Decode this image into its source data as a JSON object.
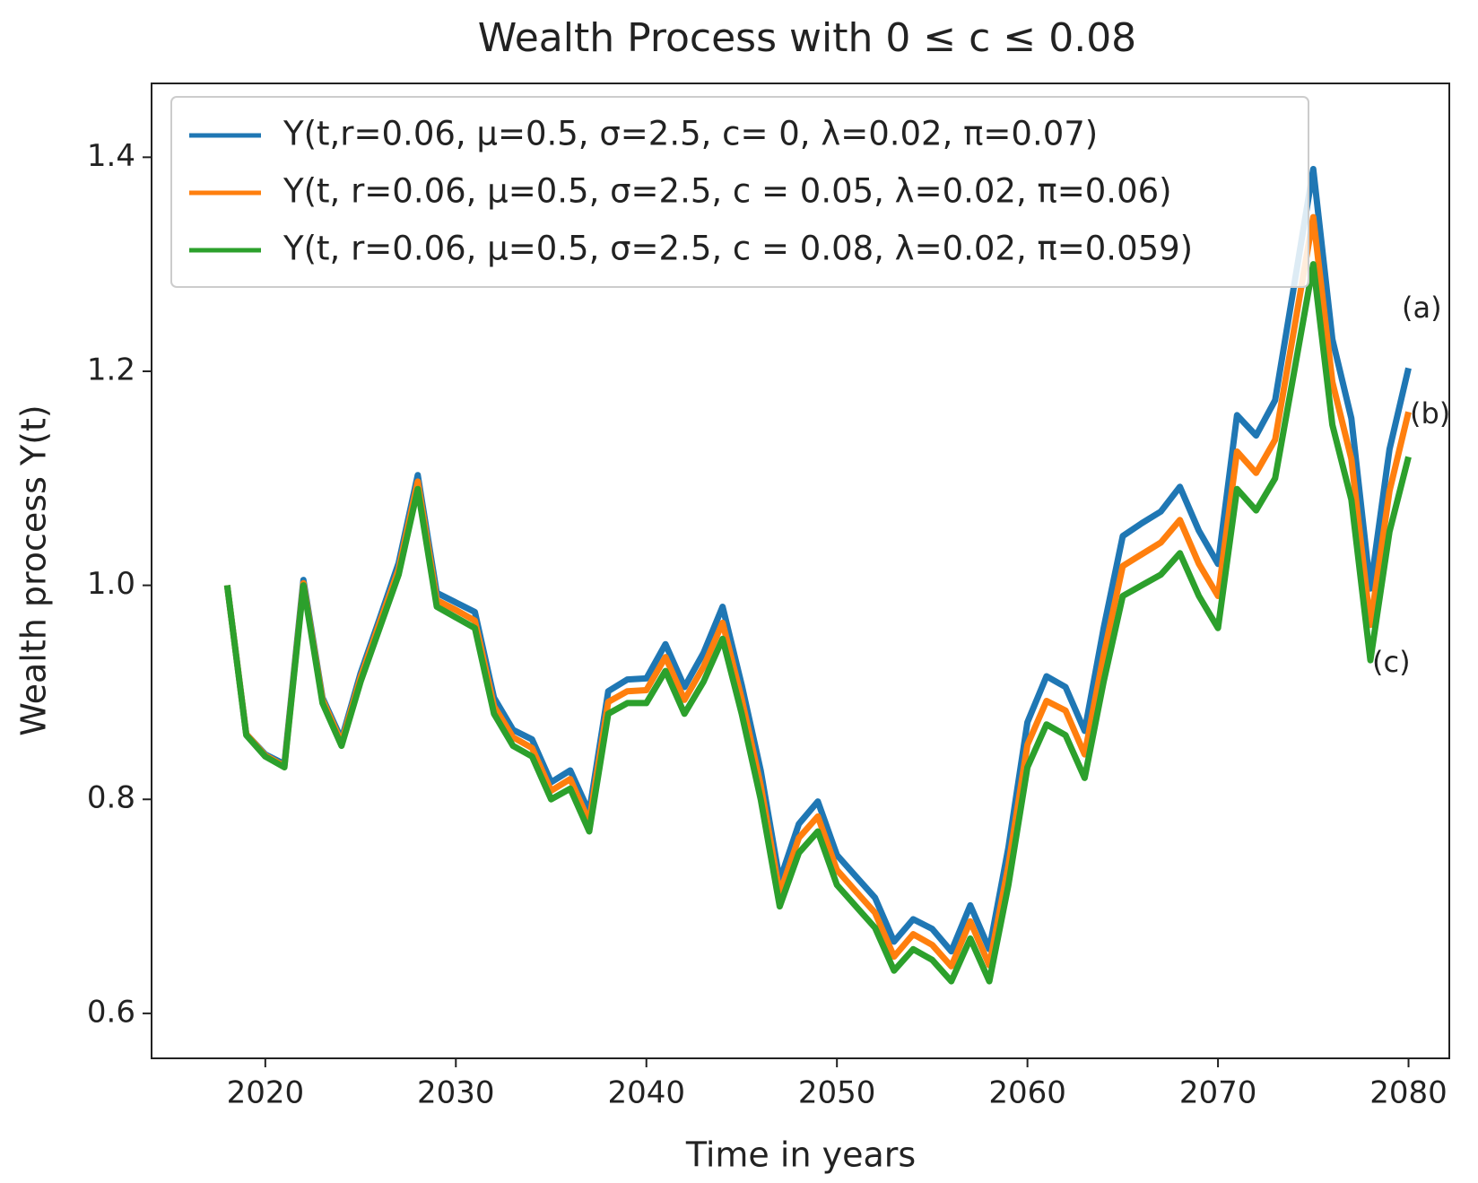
{
  "chart_data": {
    "type": "line",
    "title": "Wealth Process with 0 ≤ c ≤ 0.08",
    "x_label": "Time in years",
    "y_label": "Wealth process Y(t)",
    "xlim": [
      2014.03,
      2082.14
    ],
    "ylim": [
      0.558,
      1.469
    ],
    "xticks": [
      2020,
      2030,
      2040,
      2050,
      2060,
      2070,
      2080
    ],
    "yticks": [
      0.6,
      0.8,
      {
        "value": 1,
        "label": "1.0"
      },
      1.2,
      1.4
    ],
    "legend": "upper left",
    "x": [
      2018,
      2019,
      2020,
      2021,
      2022,
      2023,
      2024,
      2025,
      2026,
      2027,
      2028,
      2029,
      2030,
      2031,
      2032,
      2033,
      2034,
      2035,
      2036,
      2037,
      2038,
      2039,
      2040,
      2041,
      2042,
      2043,
      2044,
      2045,
      2046,
      2047,
      2048,
      2049,
      2050,
      2051,
      2052,
      2053,
      2054,
      2055,
      2056,
      2057,
      2058,
      2059,
      2060,
      2061,
      2062,
      2063,
      2064,
      2065,
      2066,
      2067,
      2068,
      2069,
      2070,
      2071,
      2072,
      2073,
      2074,
      2075,
      2076,
      2077,
      2078,
      2079,
      2080
    ],
    "series": [
      {
        "name": "Y(t,r=0.06, μ=0.5, σ=2.5, c= 0, λ=0.02, π=0.07)",
        "color": "#1f77b4",
        "values": [
          1.0,
          0.861,
          0.842,
          0.833,
          1.005,
          0.895,
          0.856,
          0.918,
          0.969,
          1.021,
          1.103,
          0.993,
          0.984,
          0.975,
          0.895,
          0.865,
          0.856,
          0.816,
          0.827,
          0.788,
          0.901,
          0.912,
          0.913,
          0.945,
          0.905,
          0.937,
          0.98,
          0.907,
          0.827,
          0.724,
          0.777,
          0.798,
          0.748,
          0.728,
          0.708,
          0.667,
          0.688,
          0.679,
          0.658,
          0.701,
          0.66,
          0.755,
          0.872,
          0.915,
          0.905,
          0.864,
          0.96,
          1.046,
          1.058,
          1.069,
          1.092,
          1.051,
          1.02,
          1.159,
          1.14,
          1.173,
          1.281,
          1.389,
          1.23,
          1.156,
          0.997,
          1.127,
          1.203
        ]
      },
      {
        "name": "Y(t, r=0.06, μ=0.5, σ=2.5, c = 0.05, λ=0.02, π=0.06)",
        "color": "#ff7f0e",
        "values": [
          1.0,
          0.861,
          0.841,
          0.831,
          1.002,
          0.893,
          0.853,
          0.914,
          0.965,
          1.015,
          1.097,
          0.986,
          0.977,
          0.967,
          0.887,
          0.858,
          0.848,
          0.808,
          0.819,
          0.779,
          0.891,
          0.901,
          0.902,
          0.933,
          0.893,
          0.924,
          0.965,
          0.894,
          0.813,
          0.712,
          0.764,
          0.784,
          0.734,
          0.714,
          0.694,
          0.653,
          0.674,
          0.664,
          0.644,
          0.686,
          0.645,
          0.738,
          0.851,
          0.892,
          0.883,
          0.842,
          0.935,
          1.018,
          1.029,
          1.04,
          1.061,
          1.02,
          0.99,
          1.125,
          1.105,
          1.136,
          1.24,
          1.344,
          1.19,
          1.118,
          0.963,
          1.088,
          1.162
        ]
      },
      {
        "name": "Y(t, r=0.06, μ=0.5, σ=2.5, c = 0.08, λ=0.02, π=0.059)",
        "color": "#2ca02c",
        "values": [
          1.0,
          0.86,
          0.84,
          0.83,
          1.0,
          0.89,
          0.85,
          0.91,
          0.96,
          1.01,
          1.09,
          0.98,
          0.97,
          0.96,
          0.88,
          0.85,
          0.84,
          0.8,
          0.81,
          0.77,
          0.88,
          0.89,
          0.89,
          0.92,
          0.88,
          0.91,
          0.95,
          0.88,
          0.8,
          0.7,
          0.75,
          0.77,
          0.72,
          0.7,
          0.68,
          0.64,
          0.66,
          0.65,
          0.63,
          0.67,
          0.63,
          0.72,
          0.83,
          0.87,
          0.86,
          0.82,
          0.91,
          0.99,
          1.0,
          1.01,
          1.03,
          0.99,
          0.96,
          1.09,
          1.07,
          1.1,
          1.2,
          1.3,
          1.15,
          1.08,
          0.93,
          1.05,
          1.12
        ]
      }
    ],
    "annotations": [
      "(a)",
      "(b)",
      "(c)"
    ]
  }
}
